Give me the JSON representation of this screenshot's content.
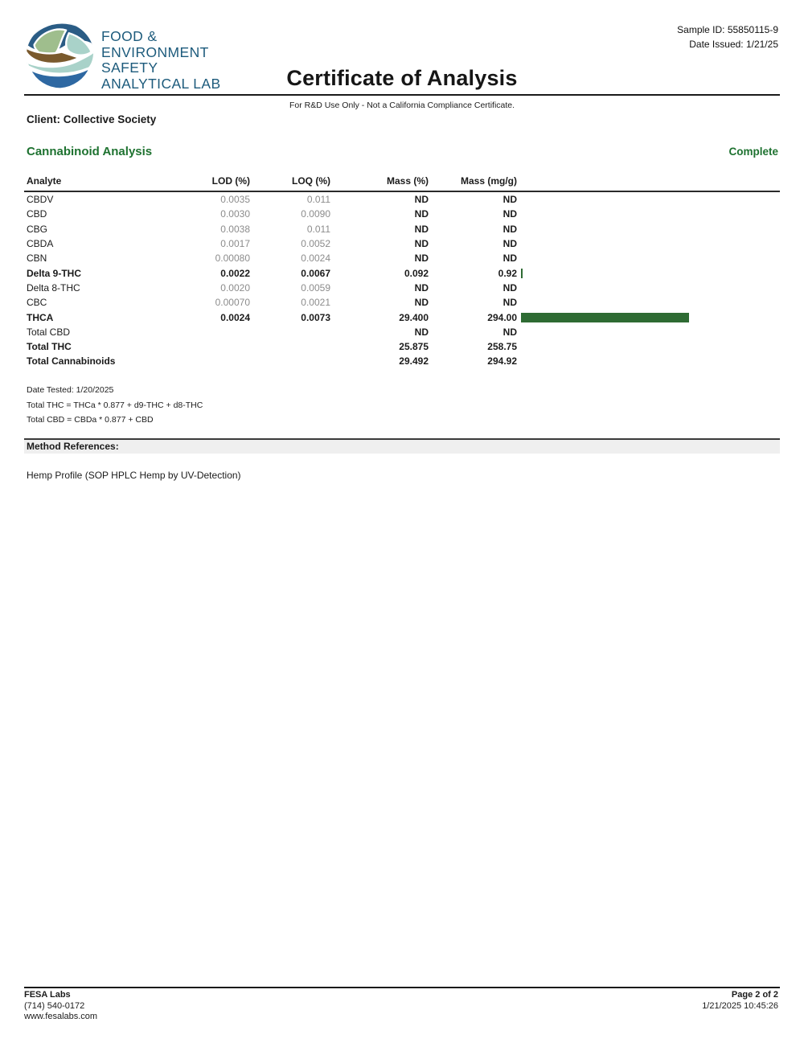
{
  "colors": {
    "accent_green": "#1e7230",
    "bar_green": "#2e6b33",
    "brand_blue": "#1d5b7c"
  },
  "header": {
    "logo_lines": [
      "FOOD &",
      "ENVIRONMENT",
      "SAFETY",
      "ANALYTICAL LAB"
    ],
    "title": "Certificate of Analysis",
    "subtitle": "For R&D Use Only - Not a California Compliance Certificate.",
    "sample_id": "Sample ID: 55850115-9",
    "date_issued": "Date Issued: 1/21/25",
    "client": "Client: Collective Society"
  },
  "section": {
    "title": "Cannabinoid Analysis",
    "status": "Complete"
  },
  "table": {
    "columns": [
      "Analyte",
      "LOD (%)",
      "LOQ (%)",
      "Mass (%)",
      "Mass (mg/g)"
    ],
    "bar_scale_max": 300,
    "rows": [
      {
        "analyte": "CBDV",
        "lod": "0.0035",
        "loq": "0.011",
        "mass_pct": "ND",
        "mass_mg": "ND",
        "bar_mg": 0,
        "bold": false
      },
      {
        "analyte": "CBD",
        "lod": "0.0030",
        "loq": "0.0090",
        "mass_pct": "ND",
        "mass_mg": "ND",
        "bar_mg": 0,
        "bold": false
      },
      {
        "analyte": "CBG",
        "lod": "0.0038",
        "loq": "0.011",
        "mass_pct": "ND",
        "mass_mg": "ND",
        "bar_mg": 0,
        "bold": false
      },
      {
        "analyte": "CBDA",
        "lod": "0.0017",
        "loq": "0.0052",
        "mass_pct": "ND",
        "mass_mg": "ND",
        "bar_mg": 0,
        "bold": false
      },
      {
        "analyte": "CBN",
        "lod": "0.00080",
        "loq": "0.0024",
        "mass_pct": "ND",
        "mass_mg": "ND",
        "bar_mg": 0,
        "bold": false
      },
      {
        "analyte": "Delta 9-THC",
        "lod": "0.0022",
        "loq": "0.0067",
        "mass_pct": "0.092",
        "mass_mg": "0.92",
        "bar_mg": 0.92,
        "bold": true
      },
      {
        "analyte": "Delta 8-THC",
        "lod": "0.0020",
        "loq": "0.0059",
        "mass_pct": "ND",
        "mass_mg": "ND",
        "bar_mg": 0,
        "bold": false
      },
      {
        "analyte": "CBC",
        "lod": "0.00070",
        "loq": "0.0021",
        "mass_pct": "ND",
        "mass_mg": "ND",
        "bar_mg": 0,
        "bold": false
      },
      {
        "analyte": "THCA",
        "lod": "0.0024",
        "loq": "0.0073",
        "mass_pct": "29.400",
        "mass_mg": "294.00",
        "bar_mg": 294.0,
        "bold": true
      },
      {
        "analyte": "Total CBD",
        "lod": "",
        "loq": "",
        "mass_pct": "ND",
        "mass_mg": "ND",
        "bar_mg": 0,
        "bold": false
      },
      {
        "analyte": "Total THC",
        "lod": "",
        "loq": "",
        "mass_pct": "25.875",
        "mass_mg": "258.75",
        "bar_mg": 0,
        "bold": true
      },
      {
        "analyte": "Total Cannabinoids",
        "lod": "",
        "loq": "",
        "mass_pct": "29.492",
        "mass_mg": "294.92",
        "bar_mg": 0,
        "bold": true
      }
    ]
  },
  "notes": {
    "date_tested": "Date Tested: 1/20/2025",
    "thc_formula": "Total THC = THCa * 0.877 + d9-THC + d8-THC",
    "cbd_formula": "Total CBD = CBDa * 0.877 + CBD"
  },
  "method": {
    "heading": "Method References:",
    "reference": "Hemp Profile (SOP HPLC Hemp by UV-Detection)"
  },
  "footer": {
    "lab_name": "FESA Labs",
    "phone": "(714) 540-0172",
    "website": "www.fesalabs.com",
    "page": "Page 2 of 2",
    "timestamp": "1/21/2025 10:45:26"
  }
}
